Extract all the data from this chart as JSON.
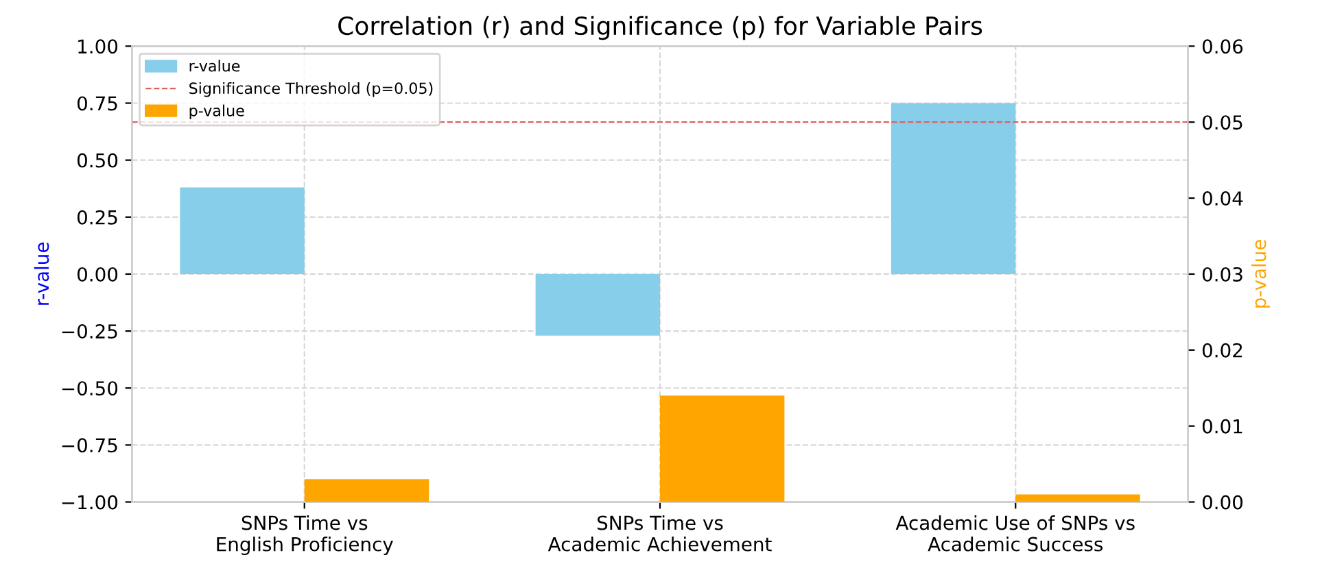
{
  "chart_data": {
    "type": "bar",
    "title": "Correlation (r) and Significance (p) for Variable Pairs",
    "ylabel": "r-value",
    "y2label": "p-value",
    "categories": [
      "SNPs Time vs\nEnglish Proficiency",
      "SNPs Time vs\nAcademic Achievement",
      "Academic Use of SNPs vs\nAcademic Success"
    ],
    "series": [
      {
        "name": "r-value",
        "color": "#87ceeb",
        "values": [
          0.38,
          -0.27,
          0.75
        ]
      },
      {
        "name": "p-value",
        "color": "#ffa500",
        "values": [
          0.003,
          0.014,
          0.001
        ],
        "axis": "y2"
      }
    ],
    "ref_lines": [
      {
        "axis": "y2",
        "value": 0.05,
        "label": "Significance Threshold (p=0.05)",
        "color": "#e06060",
        "line_style": "dashed"
      }
    ],
    "ylim": [
      -1.0,
      1.0
    ],
    "yticks": [
      {
        "value": -1.0,
        "label": "−1.00"
      },
      {
        "value": -0.75,
        "label": "−0.75"
      },
      {
        "value": -0.5,
        "label": "−0.50"
      },
      {
        "value": -0.25,
        "label": "−0.25"
      },
      {
        "value": 0.0,
        "label": "0.00"
      },
      {
        "value": 0.25,
        "label": "0.25"
      },
      {
        "value": 0.5,
        "label": "0.50"
      },
      {
        "value": 0.75,
        "label": "0.75"
      },
      {
        "value": 1.0,
        "label": "1.00"
      }
    ],
    "y2lim": [
      0.0,
      0.06
    ],
    "y2ticks": [
      {
        "value": 0.0,
        "label": "0.00"
      },
      {
        "value": 0.01,
        "label": "0.01"
      },
      {
        "value": 0.02,
        "label": "0.02"
      },
      {
        "value": 0.03,
        "label": "0.03"
      },
      {
        "value": 0.04,
        "label": "0.04"
      },
      {
        "value": 0.05,
        "label": "0.05"
      },
      {
        "value": 0.06,
        "label": "0.06"
      }
    ],
    "grid": true,
    "legend": "top left"
  }
}
